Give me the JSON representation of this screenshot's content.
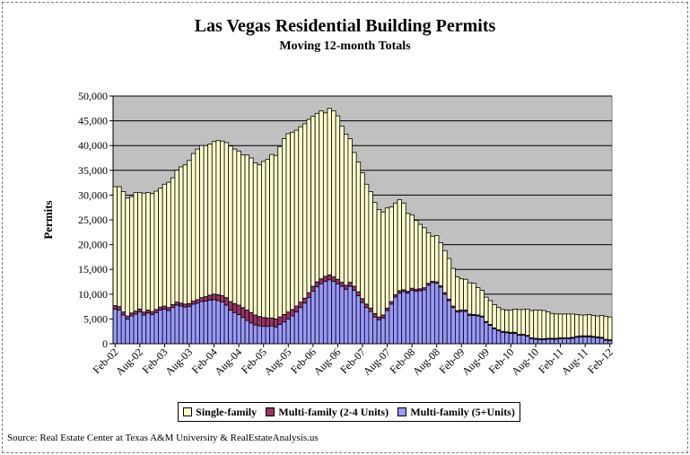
{
  "header": {
    "title": "Las Vegas Residential Building Permits",
    "subtitle": "Moving 12-month Totals"
  },
  "source": "Source: Real Estate Center at Texas A&M University & RealEstateAnalysis.us",
  "colors": {
    "plot_background": "#c0c0c0",
    "single_family": "#ffffcc",
    "multi_2_4": "#993366",
    "multi_5plus": "#9999ff",
    "bar_border": "#000000"
  },
  "chart_data": {
    "type": "bar",
    "stacked": true,
    "title": "Las Vegas Residential Building Permits",
    "subtitle": "Moving 12-month Totals",
    "ylabel": "Permits",
    "xlabel": "",
    "ylim": [
      0,
      50000
    ],
    "yticks": [
      0,
      5000,
      10000,
      15000,
      20000,
      25000,
      30000,
      35000,
      40000,
      45000,
      50000
    ],
    "ytick_labels": [
      "0",
      "5,000",
      "10,000",
      "15,000",
      "20,000",
      "25,000",
      "30,000",
      "35,000",
      "40,000",
      "45,000",
      "50,000"
    ],
    "grid": true,
    "legend_position": "bottom",
    "x_tick_labels": [
      "Feb-02",
      "Aug-02",
      "Feb-03",
      "Aug-03",
      "Feb-04",
      "Aug-04",
      "Feb-05",
      "Aug-05",
      "Feb-06",
      "Aug-06",
      "Feb-07",
      "Aug-07",
      "Feb-08",
      "Aug-08",
      "Feb-09",
      "Aug-09",
      "Feb-10",
      "Aug-10",
      "Feb-11",
      "Aug-11",
      "Feb-12"
    ],
    "categories": [
      "Feb-02",
      "Mar-02",
      "Apr-02",
      "May-02",
      "Jun-02",
      "Jul-02",
      "Aug-02",
      "Sep-02",
      "Oct-02",
      "Nov-02",
      "Dec-02",
      "Jan-03",
      "Feb-03",
      "Mar-03",
      "Apr-03",
      "May-03",
      "Jun-03",
      "Jul-03",
      "Aug-03",
      "Sep-03",
      "Oct-03",
      "Nov-03",
      "Dec-03",
      "Jan-04",
      "Feb-04",
      "Mar-04",
      "Apr-04",
      "May-04",
      "Jun-04",
      "Jul-04",
      "Aug-04",
      "Sep-04",
      "Oct-04",
      "Nov-04",
      "Dec-04",
      "Jan-05",
      "Feb-05",
      "Mar-05",
      "Apr-05",
      "May-05",
      "Jun-05",
      "Jul-05",
      "Aug-05",
      "Sep-05",
      "Oct-05",
      "Nov-05",
      "Dec-05",
      "Jan-06",
      "Feb-06",
      "Mar-06",
      "Apr-06",
      "May-06",
      "Jun-06",
      "Jul-06",
      "Aug-06",
      "Sep-06",
      "Oct-06",
      "Nov-06",
      "Dec-06",
      "Jan-07",
      "Feb-07",
      "Mar-07",
      "Apr-07",
      "May-07",
      "Jun-07",
      "Jul-07",
      "Aug-07",
      "Sep-07",
      "Oct-07",
      "Nov-07",
      "Dec-07",
      "Jan-08",
      "Feb-08",
      "Mar-08",
      "Apr-08",
      "May-08",
      "Jun-08",
      "Jul-08",
      "Aug-08",
      "Sep-08",
      "Oct-08",
      "Nov-08",
      "Dec-08",
      "Jan-09",
      "Feb-09",
      "Mar-09",
      "Apr-09",
      "May-09",
      "Jun-09",
      "Jul-09",
      "Aug-09",
      "Sep-09",
      "Oct-09",
      "Nov-09",
      "Dec-09",
      "Jan-10",
      "Feb-10",
      "Mar-10",
      "Apr-10",
      "May-10",
      "Jun-10",
      "Jul-10",
      "Aug-10",
      "Sep-10",
      "Oct-10",
      "Nov-10",
      "Dec-10",
      "Jan-11",
      "Feb-11",
      "Mar-11",
      "Apr-11",
      "May-11",
      "Jun-11",
      "Jul-11",
      "Aug-11",
      "Sep-11",
      "Oct-11",
      "Nov-11",
      "Dec-11",
      "Jan-12",
      "Feb-12"
    ],
    "series": [
      {
        "name": "Multi-family (5+Units)",
        "values": [
          7000,
          6800,
          5800,
          5000,
          5600,
          6000,
          6400,
          5800,
          6200,
          5900,
          6300,
          6800,
          7000,
          6700,
          7300,
          7800,
          7600,
          7400,
          7500,
          8000,
          8200,
          8500,
          8600,
          8800,
          8900,
          8700,
          8400,
          7800,
          6800,
          6300,
          5900,
          5300,
          4700,
          4200,
          3800,
          3600,
          3500,
          3500,
          3600,
          3400,
          3900,
          4400,
          5000,
          5600,
          6400,
          7300,
          8200,
          9300,
          10600,
          11500,
          12100,
          12600,
          12900,
          12600,
          12100,
          11600,
          11000,
          11600,
          10800,
          9700,
          8300,
          7300,
          6500,
          5400,
          4800,
          5200,
          6700,
          8000,
          9400,
          10200,
          10500,
          10200,
          10800,
          10600,
          10700,
          10900,
          11800,
          12300,
          12200,
          11400,
          10000,
          8700,
          7300,
          6400,
          6500,
          6500,
          5700,
          5700,
          5600,
          5400,
          4300,
          3700,
          3000,
          2600,
          2300,
          2200,
          2100,
          2100,
          1700,
          1700,
          1500,
          1000,
          900,
          800,
          800,
          900,
          900,
          900,
          1000,
          1000,
          1000,
          1100,
          1300,
          1400,
          1400,
          1400,
          1300,
          1200,
          1100,
          700,
          600
        ]
      },
      {
        "name": "Multi-family (2-4 Units)",
        "values": [
          700,
          700,
          600,
          600,
          600,
          600,
          600,
          600,
          600,
          600,
          600,
          600,
          600,
          600,
          600,
          600,
          600,
          600,
          600,
          600,
          700,
          800,
          900,
          1000,
          1100,
          1200,
          1300,
          1500,
          1700,
          1800,
          1900,
          2000,
          2100,
          2100,
          2000,
          1900,
          1800,
          1700,
          1600,
          1600,
          1500,
          1500,
          1400,
          1300,
          1200,
          1100,
          1000,
          1000,
          1000,
          1000,
          1000,
          1000,
          1000,
          900,
          900,
          800,
          800,
          800,
          800,
          800,
          800,
          700,
          700,
          700,
          600,
          600,
          500,
          500,
          500,
          500,
          400,
          400,
          400,
          400,
          400,
          400,
          400,
          300,
          300,
          300,
          300,
          300,
          300,
          300,
          300,
          300,
          300,
          200,
          200,
          200,
          200,
          200,
          200,
          200,
          200,
          200,
          200,
          200,
          200,
          200,
          200,
          200,
          200,
          200,
          200,
          200,
          200,
          200,
          200,
          200,
          200,
          200,
          200,
          200,
          200,
          200,
          200,
          200,
          200,
          200,
          200
        ]
      },
      {
        "name": "Single-family",
        "values": [
          24000,
          24200,
          24300,
          23800,
          23500,
          23900,
          23500,
          24000,
          23700,
          23800,
          23900,
          24000,
          24600,
          25300,
          25600,
          26600,
          27500,
          28100,
          28900,
          29800,
          30400,
          30700,
          30500,
          30500,
          30800,
          31100,
          31200,
          31300,
          31400,
          31200,
          31100,
          30800,
          31300,
          31200,
          30700,
          30600,
          31500,
          32000,
          33000,
          33000,
          34400,
          35500,
          36000,
          35800,
          35500,
          35400,
          35200,
          35000,
          34300,
          34000,
          33900,
          33000,
          33600,
          33500,
          33000,
          31500,
          30500,
          29000,
          27000,
          26200,
          25400,
          24200,
          23500,
          22400,
          21700,
          20800,
          20200,
          19100,
          18500,
          18400,
          17500,
          15700,
          14800,
          13900,
          13000,
          12100,
          10200,
          9100,
          9300,
          8700,
          8500,
          8200,
          7600,
          6800,
          6300,
          6200,
          6300,
          6300,
          5500,
          5200,
          4900,
          4800,
          4700,
          4500,
          4400,
          4400,
          4500,
          4700,
          5000,
          5000,
          5300,
          5500,
          5700,
          5800,
          5700,
          5300,
          5000,
          4900,
          4800,
          4800,
          4800,
          4700,
          4400,
          4200,
          4200,
          4300,
          4200,
          4200,
          4400,
          4600,
          4600
        ]
      }
    ]
  }
}
